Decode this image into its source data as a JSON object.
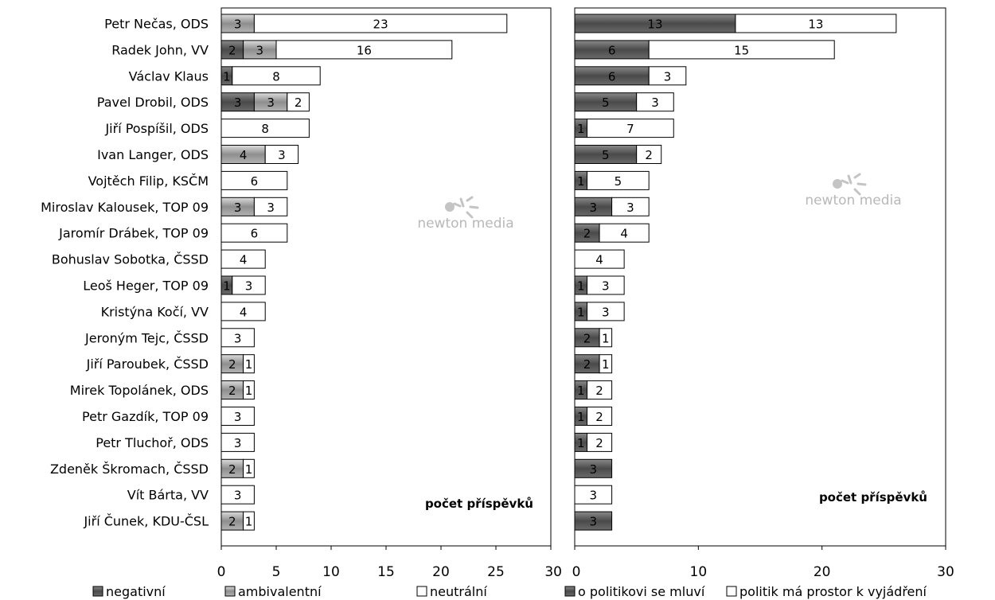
{
  "chart_data": [
    {
      "type": "bar",
      "orientation": "horizontal",
      "stacked": true,
      "categories": [
        "Petr Nečas, ODS",
        "Radek John, VV",
        "Václav Klaus",
        "Pavel Drobil, ODS",
        "Jiří Pospíšil, ODS",
        "Ivan Langer, ODS",
        "Vojtěch Filip, KSČM",
        "Miroslav Kalousek, TOP 09",
        "Jaromír Drábek, TOP 09",
        "Bohuslav Sobotka, ČSSD",
        "Leoš Heger, TOP 09",
        "Kristýna Kočí, VV",
        "Jeroným Tejc, ČSSD",
        "Jiří Paroubek, ČSSD",
        "Mirek Topolánek, ODS",
        "Petr Gazdík, TOP 09",
        "Petr Tluchoř, ODS",
        "Zdeněk Škromach, ČSSD",
        "Vít Bárta, VV",
        "Jiří Čunek, KDU-ČSL"
      ],
      "series": [
        {
          "name": "negativní",
          "values": [
            0,
            2,
            1,
            3,
            0,
            0,
            0,
            0,
            0,
            0,
            1,
            0,
            0,
            0,
            0,
            0,
            0,
            0,
            0,
            0
          ]
        },
        {
          "name": "ambivalentní",
          "values": [
            3,
            3,
            0,
            3,
            0,
            4,
            0,
            3,
            0,
            0,
            0,
            0,
            0,
            2,
            2,
            0,
            0,
            2,
            0,
            2
          ]
        },
        {
          "name": "neutrální",
          "values": [
            23,
            16,
            8,
            2,
            8,
            3,
            6,
            3,
            6,
            4,
            3,
            4,
            3,
            1,
            1,
            3,
            3,
            1,
            3,
            1
          ]
        }
      ],
      "xlim": [
        0,
        30
      ],
      "xticks": [
        "0",
        "5",
        "10",
        "15",
        "20",
        "25",
        "30"
      ],
      "annotation": "počet příspěvků",
      "colors": {
        "negativní": "#5a5a5a",
        "ambivalentní": "#a0a0a0",
        "neutrální": "#ffffff"
      }
    },
    {
      "type": "bar",
      "orientation": "horizontal",
      "stacked": true,
      "categories": [
        "Petr Nečas, ODS",
        "Radek John, VV",
        "Václav Klaus",
        "Pavel Drobil, ODS",
        "Jiří Pospíšil, ODS",
        "Ivan Langer, ODS",
        "Vojtěch Filip, KSČM",
        "Miroslav Kalousek, TOP 09",
        "Jaromír Drábek, TOP 09",
        "Bohuslav Sobotka, ČSSD",
        "Leoš Heger, TOP 09",
        "Kristýna Kočí, VV",
        "Jeroným Tejc, ČSSD",
        "Jiří Paroubek, ČSSD",
        "Mirek Topolánek, ODS",
        "Petr Gazdík, TOP 09",
        "Petr Tluchoř, ODS",
        "Zdeněk Škromach, ČSSD",
        "Vít Bárta, VV",
        "Jiří Čunek, KDU-ČSL"
      ],
      "series": [
        {
          "name": "o politikovi se mluví",
          "values": [
            13,
            6,
            6,
            5,
            1,
            5,
            1,
            3,
            2,
            0,
            1,
            1,
            2,
            2,
            1,
            1,
            1,
            3,
            0,
            3
          ]
        },
        {
          "name": "politik má prostor k vyjádření",
          "values": [
            13,
            15,
            3,
            3,
            7,
            2,
            5,
            3,
            4,
            4,
            3,
            3,
            1,
            1,
            2,
            2,
            2,
            0,
            3,
            0
          ]
        }
      ],
      "xlim": [
        0,
        30
      ],
      "xticks": [
        "0",
        "10",
        "20",
        "30"
      ],
      "annotation": "počet příspěvků",
      "colors": {
        "o politikovi se mluví": "#5a5a5a",
        "politik má prostor k vyjádření": "#ffffff"
      }
    }
  ],
  "watermark": {
    "text": "newton media"
  }
}
